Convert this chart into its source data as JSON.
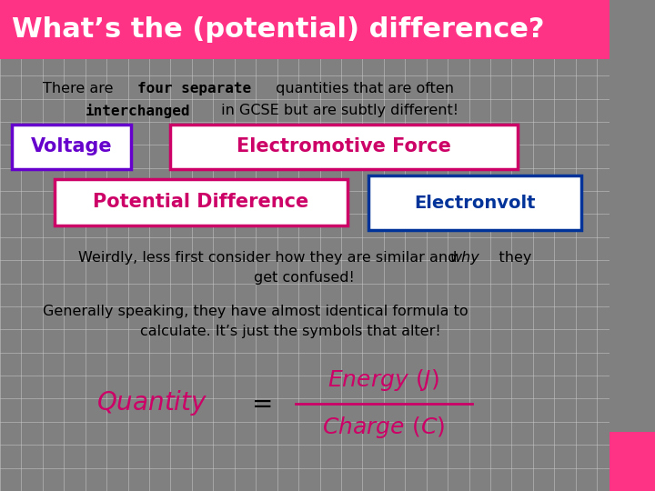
{
  "title": "What’s the (potential) difference?",
  "title_bg": "#FF3385",
  "title_color": "#FFFFFF",
  "main_bg": "#FAFAFA",
  "grid_color": "#CCCCCC",
  "voltage_text": "Voltage",
  "voltage_color": "#6600CC",
  "emf_text": "Electromotive Force",
  "emf_color": "#CC0066",
  "pd_text": "Potential Difference",
  "pd_color": "#CC0066",
  "ev_text": "Electronvolt",
  "ev_color": "#003399",
  "formula_color": "#CC0066",
  "sidebar_color": "#808080",
  "sidebar_pink": "#FF3385"
}
